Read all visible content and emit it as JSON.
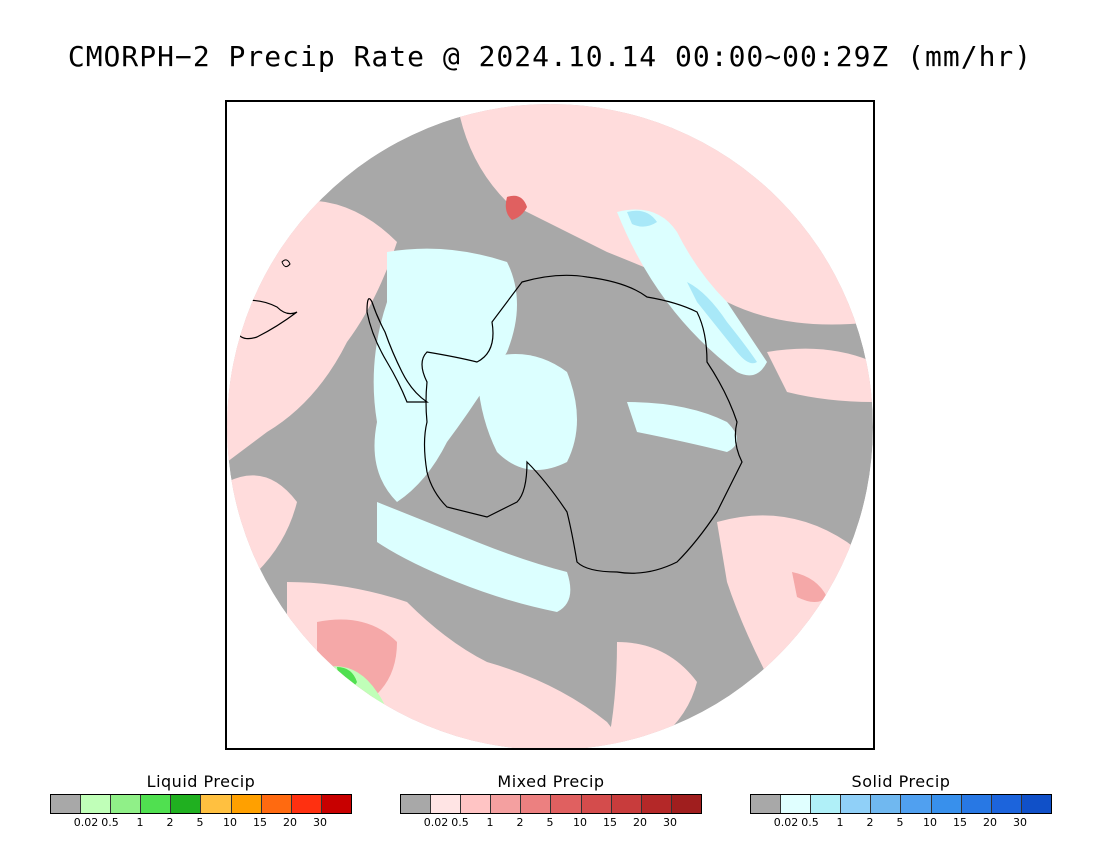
{
  "title": "CMORPH−2 Precip Rate @ 2024.10.14 00:00~00:29Z (mm/hr)",
  "map": {
    "colors": {
      "no_precip": "#a8a8a8",
      "mixed_light": "#ffdcdc",
      "mixed_med": "#f5a8a8",
      "mixed_heavy": "#e06060",
      "solid_light": "#dcffff",
      "solid_med": "#a8e8f8",
      "solid_heavy": "#90c8f0",
      "liquid_light": "#c0ffb8",
      "liquid_med": "#50e050",
      "coastline": "#000000",
      "outside": "#ffffff"
    }
  },
  "legends": [
    {
      "title": "Liquid Precip",
      "colors": [
        "#a8a8a8",
        "#c0ffb8",
        "#90f088",
        "#50e050",
        "#20b020",
        "#ffc040",
        "#ffa000",
        "#ff6a10",
        "#ff3010",
        "#c80000"
      ],
      "labels": [
        "0.02",
        "0.5",
        "1",
        "2",
        "5",
        "10",
        "15",
        "20",
        "30"
      ]
    },
    {
      "title": "Mixed Precip",
      "colors": [
        "#a8a8a8",
        "#ffe4e4",
        "#ffc4c4",
        "#f4a0a0",
        "#ec8080",
        "#e06060",
        "#d44c4c",
        "#c83c3c",
        "#b42828",
        "#a01e1e"
      ],
      "labels": [
        "0.02",
        "0.5",
        "1",
        "2",
        "5",
        "10",
        "15",
        "20",
        "30"
      ]
    },
    {
      "title": "Solid Precip",
      "colors": [
        "#a8a8a8",
        "#e0ffff",
        "#b0f0f8",
        "#90d0f8",
        "#70b8f0",
        "#50a0f0",
        "#3890ec",
        "#2878e4",
        "#1c64dc",
        "#1050c8"
      ],
      "labels": [
        "0.02",
        "0.5",
        "1",
        "2",
        "5",
        "10",
        "15",
        "20",
        "30"
      ]
    }
  ]
}
